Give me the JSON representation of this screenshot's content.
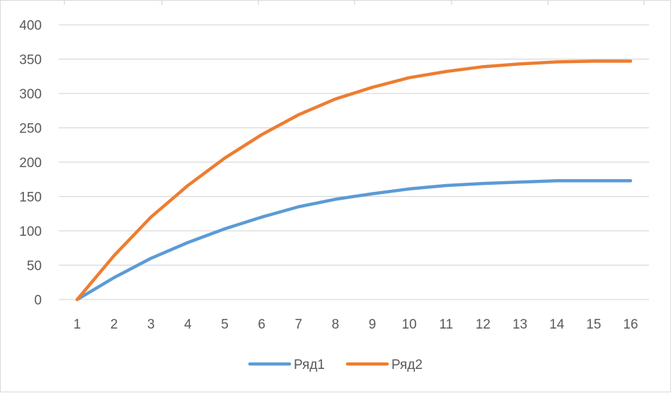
{
  "chart_data": {
    "type": "line",
    "title": "",
    "xlabel": "",
    "ylabel": "",
    "categories": [
      "1",
      "2",
      "3",
      "4",
      "5",
      "6",
      "7",
      "8",
      "9",
      "10",
      "11",
      "12",
      "13",
      "14",
      "15",
      "16"
    ],
    "ylim": [
      0,
      400
    ],
    "y_ticks": [
      0,
      50,
      100,
      150,
      200,
      250,
      300,
      350,
      400
    ],
    "grid": true,
    "legend_position": "bottom",
    "series": [
      {
        "name": "Ряд1",
        "color": "#5b9bd5",
        "values": [
          0,
          32,
          60,
          83,
          103,
          120,
          135,
          146,
          154,
          161,
          166,
          169,
          171,
          173,
          173,
          173
        ]
      },
      {
        "name": "Ряд2",
        "color": "#ed7d31",
        "values": [
          0,
          64,
          120,
          166,
          206,
          240,
          269,
          292,
          309,
          323,
          332,
          339,
          343,
          346,
          347,
          347
        ]
      }
    ]
  }
}
